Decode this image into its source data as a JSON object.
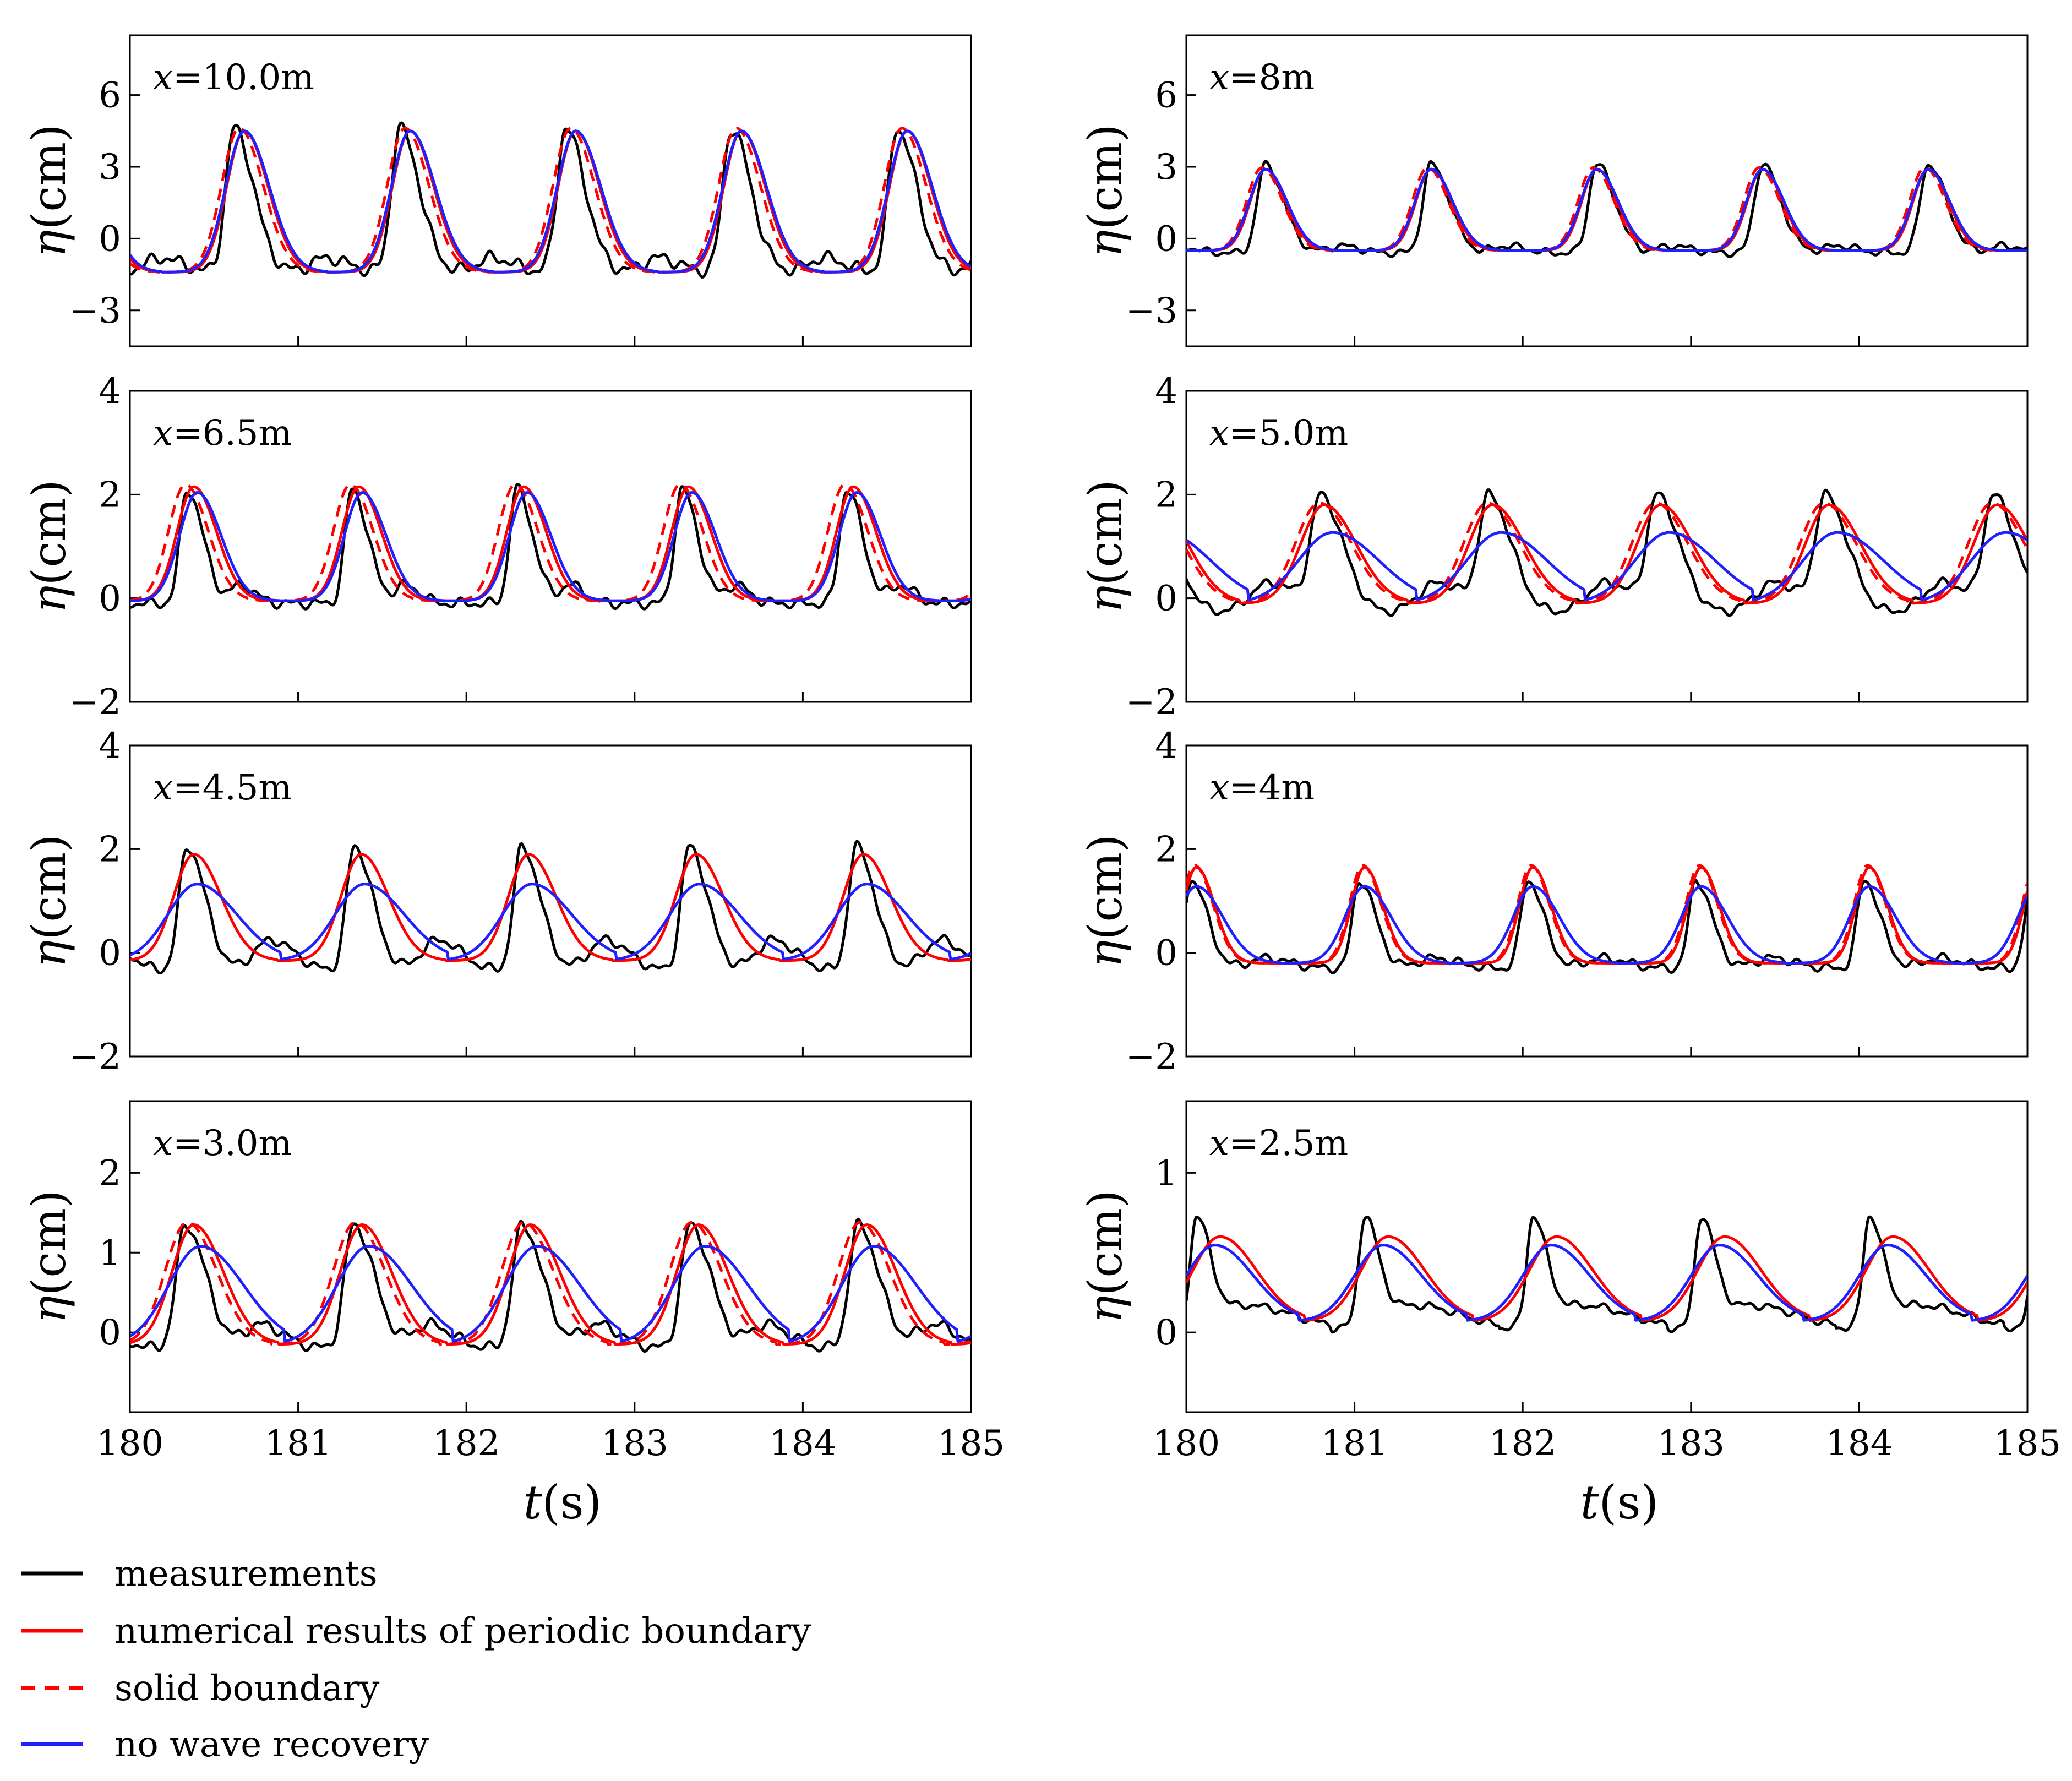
{
  "chart_data": {
    "type": "line",
    "title": "",
    "xlabel_parts": {
      "var": "t",
      "unit": "(s)"
    },
    "ylabel_parts": {
      "var": "η",
      "unit": "(cm)"
    },
    "xlim": [
      180,
      185
    ],
    "xticks": [
      "180",
      "181",
      "182",
      "183",
      "184",
      "185"
    ],
    "legend": [
      {
        "key": "measurements",
        "label": "measurements",
        "color": "#000000",
        "dashed": false
      },
      {
        "key": "periodic",
        "label": "numerical results of periodic boundary",
        "color": "#ff0000",
        "dashed": false
      },
      {
        "key": "solid",
        "label": "solid boundary",
        "color": "#ff0000",
        "dashed": true
      },
      {
        "key": "norecovery",
        "label": "no wave recovery",
        "color": "#1f1fff",
        "dashed": false
      }
    ],
    "panels": [
      {
        "var": "x",
        "value": "=10.0m",
        "ylim": [
          -4.5,
          8.5
        ],
        "yticks": [
          {
            "v": 6,
            "t": "6"
          },
          {
            "v": 3,
            "t": "3"
          },
          {
            "v": 0,
            "t": "0"
          },
          {
            "v": -3,
            "t": "−3"
          }
        ],
        "model": {
          "period": 0.985,
          "p0": 0.68,
          "base": -1.4,
          "amp": 5.9,
          "width": 0.105
        },
        "meas": {
          "p0": 0.62,
          "base": -1.4,
          "amp": 6.0,
          "width": 0.085,
          "bumps": [
            {
              "off": 0.55,
              "amp": 0.6,
              "w": 0.09
            }
          ]
        },
        "curves": [
          "meas",
          "periodic",
          "solid",
          "norecovery"
        ],
        "solid_shift": -0.03,
        "norecovery_scale": 1.0,
        "norecovery_shift": 0.0
      },
      {
        "var": "x",
        "value": "=8m",
        "ylim": [
          -4.5,
          8.5
        ],
        "yticks": [
          {
            "v": 6,
            "t": "6"
          },
          {
            "v": 3,
            "t": "3"
          },
          {
            "v": 0,
            "t": "0"
          },
          {
            "v": -3,
            "t": "−3"
          }
        ],
        "model": {
          "period": 0.985,
          "p0": 0.47,
          "base": -0.5,
          "amp": 3.4,
          "width": 0.09
        },
        "meas": {
          "p0": 0.47,
          "base": -0.6,
          "amp": 3.7,
          "width": 0.08,
          "bumps": [
            {
              "off": 0.45,
              "amp": 0.3,
              "w": 0.08
            }
          ]
        },
        "curves": [
          "meas",
          "periodic",
          "solid",
          "norecovery"
        ],
        "solid_shift": -0.02,
        "norecovery_scale": 1.0,
        "norecovery_shift": 0.0
      },
      {
        "var": "x",
        "value": "=6.5m",
        "ylim": [
          -2.0,
          4.0
        ],
        "yticks": [
          {
            "v": 4,
            "t": "4"
          },
          {
            "v": 2,
            "t": "2"
          },
          {
            "v": 0,
            "t": "0"
          },
          {
            "v": -2,
            "t": "−2"
          }
        ],
        "model": {
          "period": 0.98,
          "p0": 0.38,
          "base": -0.05,
          "amp": 2.2,
          "width": 0.1
        },
        "meas": {
          "p0": 0.34,
          "base": -0.1,
          "amp": 2.2,
          "width": 0.07,
          "bumps": [
            {
              "off": 0.32,
              "amp": 0.35,
              "w": 0.06
            }
          ]
        },
        "curves": [
          "meas",
          "periodic",
          "solid",
          "norecovery"
        ],
        "solid_shift": -0.05,
        "norecovery_scale": 0.95,
        "norecovery_shift": 0.02
      },
      {
        "var": "x",
        "value": "=5.0m",
        "ylim": [
          -2.0,
          4.0
        ],
        "yticks": [
          {
            "v": 4,
            "t": "4"
          },
          {
            "v": 2,
            "t": "2"
          },
          {
            "v": 0,
            "t": "0"
          },
          {
            "v": -2,
            "t": "−2"
          }
        ],
        "model": {
          "period": 1.0,
          "p0": 0.82,
          "base": -0.1,
          "amp": 1.9,
          "width": 0.14
        },
        "meas": {
          "p0": 0.8,
          "base": -0.3,
          "amp": 2.2,
          "width": 0.1,
          "bumps": [
            {
              "off": -0.3,
              "amp": 0.6,
              "w": 0.12
            }
          ]
        },
        "curves": [
          "meas",
          "periodic",
          "solid",
          "norecovery"
        ],
        "solid_shift": -0.03,
        "norecovery_scale": 0.72,
        "norecovery_shift": 0.05
      },
      {
        "var": "x",
        "value": "=4.5m",
        "ylim": [
          -2.0,
          4.0
        ],
        "yticks": [
          {
            "v": 4,
            "t": "4"
          },
          {
            "v": 2,
            "t": "2"
          },
          {
            "v": 0,
            "t": "0"
          },
          {
            "v": -2,
            "t": "−2"
          }
        ],
        "model": {
          "period": 0.995,
          "p0": 0.38,
          "base": -0.15,
          "amp": 2.05,
          "width": 0.12
        },
        "meas": {
          "p0": 0.34,
          "base": -0.35,
          "amp": 2.4,
          "width": 0.08,
          "bumps": [
            {
              "off": 0.5,
              "amp": 0.6,
              "w": 0.1
            }
          ]
        },
        "curves": [
          "meas",
          "periodic",
          "norecovery"
        ],
        "solid_shift": 0,
        "norecovery_scale": 0.72,
        "norecovery_shift": 0.02
      },
      {
        "var": "x",
        "value": "=4m",
        "ylim": [
          -2.0,
          4.0
        ],
        "yticks": [
          {
            "v": 4,
            "t": "4"
          },
          {
            "v": 2,
            "t": "2"
          },
          {
            "v": 0,
            "t": "0"
          },
          {
            "v": -2,
            "t": "−2"
          }
        ],
        "model": {
          "period": 1.0,
          "p0": 0.06,
          "base": -0.2,
          "amp": 1.85,
          "width": 0.08
        },
        "meas": {
          "p0": 0.03,
          "base": -0.3,
          "amp": 1.7,
          "width": 0.07,
          "bumps": [
            {
              "off": 0.45,
              "amp": 0.2,
              "w": 0.1
            }
          ]
        },
        "curves": [
          "meas",
          "periodic",
          "solid",
          "norecovery"
        ],
        "solid_shift": -0.01,
        "norecovery_scale": 0.8,
        "norecovery_shift": 0.0
      },
      {
        "var": "x",
        "value": "=3.0m",
        "ylim": [
          -1.0,
          2.9
        ],
        "yticks": [
          {
            "v": 2,
            "t": "2"
          },
          {
            "v": 1,
            "t": "1"
          },
          {
            "v": 0,
            "t": "0"
          }
        ],
        "model": {
          "period": 1.0,
          "p0": 0.38,
          "base": -0.15,
          "amp": 1.5,
          "width": 0.13
        },
        "meas": {
          "p0": 0.33,
          "base": -0.2,
          "amp": 1.55,
          "width": 0.09,
          "bumps": [
            {
              "off": 0.45,
              "amp": 0.3,
              "w": 0.1
            }
          ]
        },
        "curves": [
          "meas",
          "periodic",
          "solid",
          "norecovery"
        ],
        "solid_shift": -0.04,
        "norecovery_scale": 0.82,
        "norecovery_shift": 0.04
      },
      {
        "var": "x",
        "value": "=2.5m",
        "ylim": [
          -0.5,
          1.45
        ],
        "yticks": [
          {
            "v": 1,
            "t": "1"
          },
          {
            "v": 0,
            "t": "0"
          }
        ],
        "model": {
          "period": 1.0,
          "p0": 0.2,
          "base": 0.07,
          "amp": 0.53,
          "width": 0.16
        },
        "meas": {
          "p0": 0.06,
          "base": 0.02,
          "amp": 0.66,
          "width": 0.06,
          "bumps": [
            {
              "off": 0.3,
              "amp": 0.15,
              "w": 0.2
            }
          ]
        },
        "curves": [
          "meas",
          "periodic",
          "norecovery"
        ],
        "solid_shift": 0,
        "norecovery_scale": 0.9,
        "norecovery_shift": -0.03
      }
    ]
  }
}
